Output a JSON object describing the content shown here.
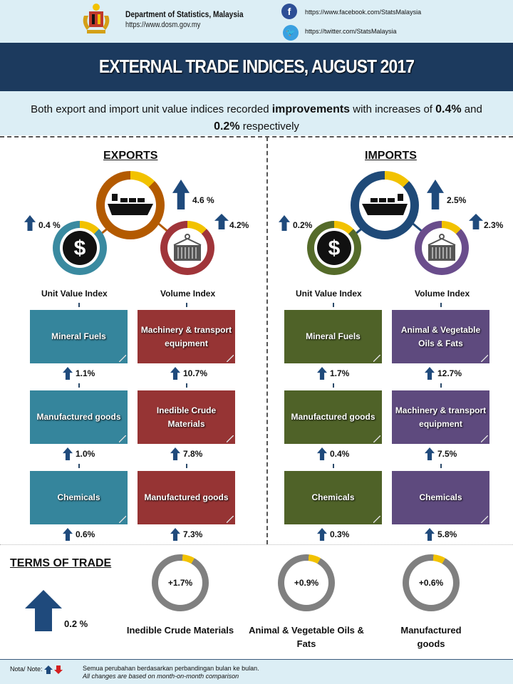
{
  "header": {
    "department": "Department of Statistics, Malaysia",
    "website": "https://www.dosm.gov.my",
    "facebook_icon": "facebook-icon",
    "facebook_url": "https://www.facebook.com/StatsMalaysia",
    "twitter_icon": "twitter-icon",
    "twitter_url": "https://twitter.com/StatsMalaysia"
  },
  "title": "EXTERNAL TRADE INDICES, AUGUST 2017",
  "summary": {
    "part1": "Both export and import unit value indices recorded ",
    "bold1": "improvements",
    "part2": " with increases of ",
    "bold2": "0.4%",
    "part3": " and ",
    "bold3": "0.2%",
    "part4": " respectively"
  },
  "exports": {
    "title": "EXPORTS",
    "total_change": "4.6 %",
    "unit_value_change": "0.4 %",
    "volume_change": "4.2%",
    "unit_value_label": "Unit Value Index",
    "volume_label": "Volume Index",
    "unit_value_items": [
      {
        "label": "Mineral Fuels",
        "change": "1.1%"
      },
      {
        "label": "Manufactured goods",
        "change": "1.0%"
      },
      {
        "label": "Chemicals",
        "change": "0.6%"
      }
    ],
    "volume_items": [
      {
        "label": "Machinery & transport equipment",
        "change": "10.7%"
      },
      {
        "label": "Inedible Crude Materials",
        "change": "7.8%"
      },
      {
        "label": "Manufactured goods",
        "change": "7.3%"
      }
    ],
    "colors": {
      "main": "#b35a00",
      "unit": "#3a8aa0",
      "volume": "#a0353a",
      "unit_box": "#35859c",
      "volume_box": "#963434"
    }
  },
  "imports": {
    "title": "IMPORTS",
    "total_change": "2.5%",
    "unit_value_change": "0.2%",
    "volume_change": "2.3%",
    "unit_value_label": "Unit Value Index",
    "volume_label": "Volume Index",
    "unit_value_items": [
      {
        "label": "Mineral Fuels",
        "change": "1.7%"
      },
      {
        "label": "Manufactured goods",
        "change": "0.4%"
      },
      {
        "label": "Chemicals",
        "change": "0.3%"
      }
    ],
    "volume_items": [
      {
        "label": "Animal & Vegetable Oils & Fats",
        "change": "12.7%"
      },
      {
        "label": "Machinery & transport equipment",
        "change": "7.5%"
      },
      {
        "label": "Chemicals",
        "change": "5.8%"
      }
    ],
    "colors": {
      "main": "#1f4a78",
      "unit": "#556b2a",
      "volume": "#6a4d8c",
      "unit_box": "#4f6228",
      "volume_box": "#5e4a7e"
    }
  },
  "terms_of_trade": {
    "title": "TERMS OF TRADE",
    "change": "0.2 %",
    "items": [
      {
        "label": "Inedible Crude Materials",
        "change": "+1.7%"
      },
      {
        "label": "Animal & Vegetable Oils & Fats",
        "change": "+0.9%"
      },
      {
        "label": "Manufactured goods",
        "change": "+0.6%"
      }
    ]
  },
  "footer": {
    "note_label": "Nota/ Note:",
    "note_ms": "Semua perubahan berdasarkan perbandingan bulan ke bulan.",
    "note_en": "All changes are based on month-on-month comparison"
  },
  "colors": {
    "arrow": "#1f4a7c",
    "accent_yellow": "#f2c200",
    "down_arrow": "#d42020"
  }
}
